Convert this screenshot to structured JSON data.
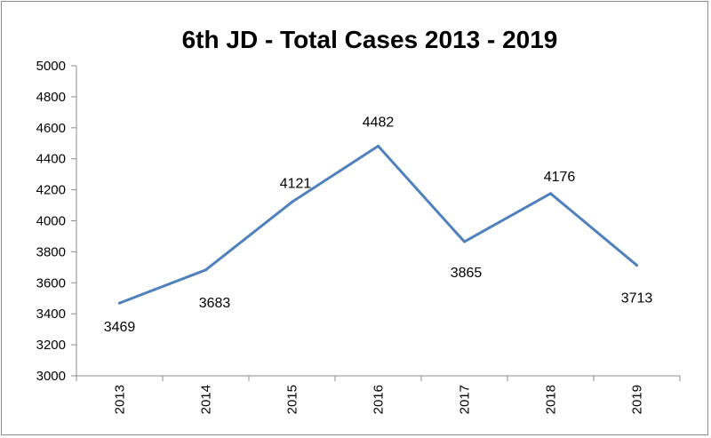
{
  "chart_data": {
    "type": "line",
    "title": "6th JD - Total Cases  2013 - 2019",
    "xlabel": "",
    "ylabel": "",
    "categories": [
      "2013",
      "2014",
      "2015",
      "2016",
      "2017",
      "2018",
      "2019"
    ],
    "series": [
      {
        "values": [
          3469,
          3683,
          4121,
          4482,
          3865,
          4176,
          3713
        ],
        "color": "#4f81bd"
      }
    ],
    "data_labels": [
      "3469",
      "3683",
      "4121",
      "4482",
      "3865",
      "4176",
      "3713"
    ],
    "yticks": [
      "3000",
      "3200",
      "3400",
      "3600",
      "3800",
      "4000",
      "4200",
      "4400",
      "4600",
      "4800",
      "5000"
    ],
    "ylim": [
      3000,
      5000
    ],
    "grid": false,
    "legend": "none"
  }
}
